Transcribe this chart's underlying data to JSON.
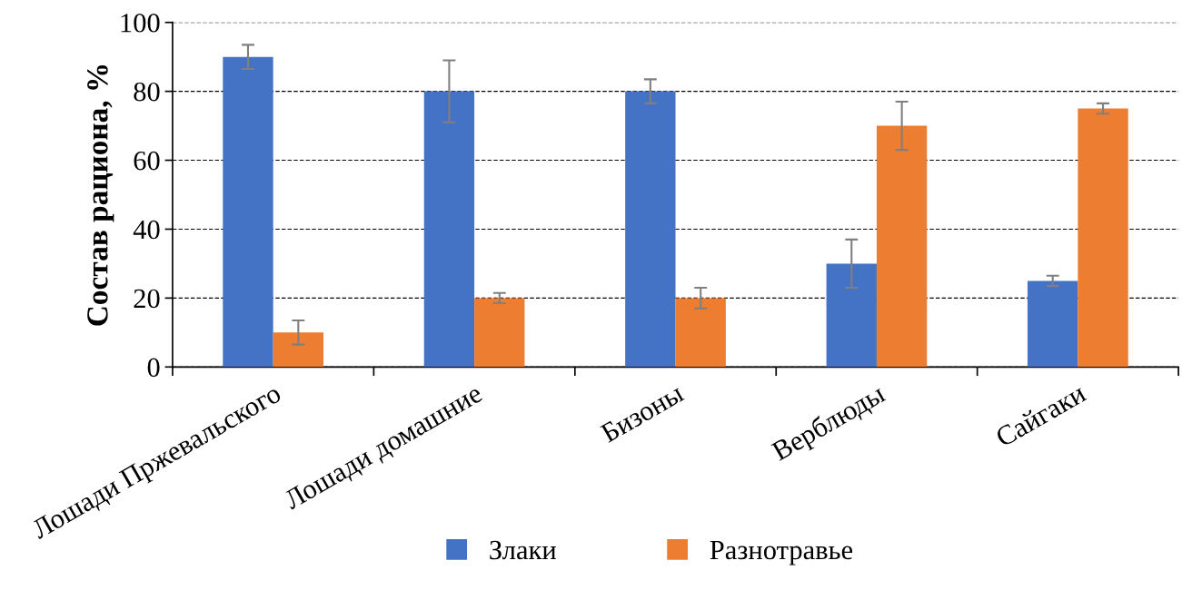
{
  "chart_data": {
    "type": "bar",
    "ylabel": "Состав рациона, %",
    "categories": [
      "Лошади Пржевальского",
      "Лошади домашние",
      "Бизоны",
      "Верблюды",
      "Сайгаки"
    ],
    "series": [
      {
        "name": "Злаки",
        "color": "#4472c4",
        "values": [
          90,
          80,
          80,
          30,
          25
        ],
        "errors": [
          3.5,
          9,
          3.5,
          7,
          1.5
        ]
      },
      {
        "name": "Разнотравье",
        "color": "#ed7d31",
        "values": [
          10,
          20,
          20,
          70,
          75
        ],
        "errors": [
          3.5,
          1.5,
          3,
          7,
          1.5
        ]
      }
    ],
    "ylim": [
      0,
      100
    ],
    "yticks": [
      0,
      20,
      40,
      60,
      80,
      100
    ],
    "grid": "y",
    "legend": "bottom"
  }
}
